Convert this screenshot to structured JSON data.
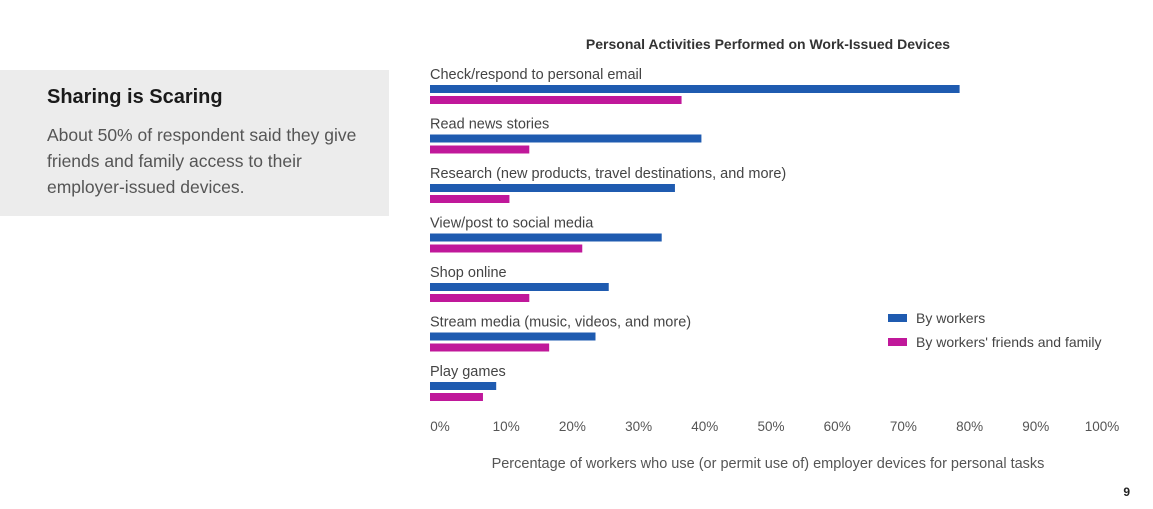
{
  "sidebar": {
    "title": "Sharing is Scaring",
    "body": "About 50% of respondent said they give friends and family access to their employer-issued devices."
  },
  "page_number": "9",
  "chart_data": {
    "type": "bar",
    "orientation": "horizontal",
    "title": "Personal Activities Performed on Work-Issued Devices",
    "xlabel": "Percentage of workers who use (or permit use of) employer devices for personal tasks",
    "ylabel": "",
    "xlim": [
      0,
      100
    ],
    "x_ticks": [
      "0%",
      "10%",
      "20%",
      "30%",
      "40%",
      "50%",
      "60%",
      "70%",
      "80%",
      "90%",
      "100%"
    ],
    "grid": false,
    "legend_position": "right",
    "categories": [
      "Check/respond to personal email",
      "Read news stories",
      "Research (new products, travel destinations, and more)",
      "View/post to social media",
      "Shop online",
      "Stream media (music, videos, and more)",
      "Play games"
    ],
    "series": [
      {
        "name": "By workers",
        "color": "#1f5bb0",
        "values": [
          80,
          41,
          37,
          35,
          27,
          25,
          10
        ]
      },
      {
        "name": "By workers' friends and family",
        "color": "#c0189a",
        "values": [
          38,
          15,
          12,
          23,
          15,
          18,
          8
        ]
      }
    ]
  }
}
